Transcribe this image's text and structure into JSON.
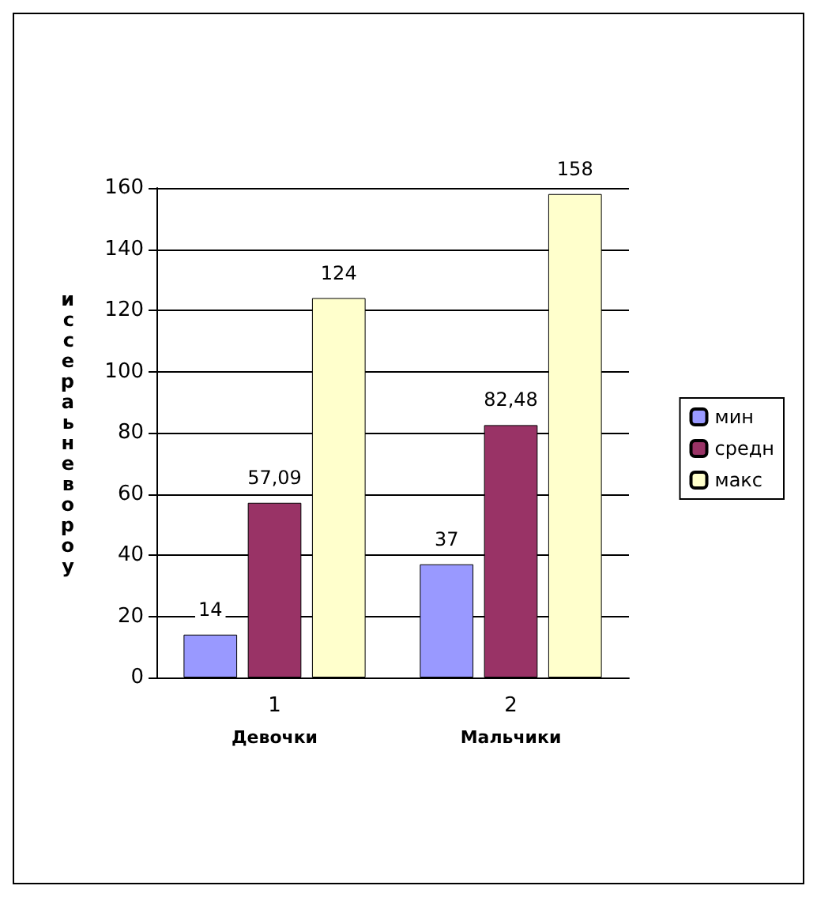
{
  "chart_data": {
    "type": "bar",
    "ylabel": "иссераьневороу",
    "categories": [
      "1",
      "2"
    ],
    "series": [
      {
        "name": "мин",
        "color": "#9999ff",
        "values": [
          14,
          37
        ],
        "value_labels": [
          "14",
          "37"
        ]
      },
      {
        "name": "средн",
        "color": "#993366",
        "values": [
          57.09,
          82.48
        ],
        "value_labels": [
          "57,09",
          "82,48"
        ]
      },
      {
        "name": "макс",
        "color": "#ffffcc",
        "values": [
          124,
          158
        ],
        "value_labels": [
          "124",
          "158"
        ]
      }
    ],
    "ylim": [
      0,
      160
    ],
    "yticks": [
      0,
      20,
      40,
      60,
      80,
      100,
      120,
      140,
      160
    ],
    "grid": "y",
    "legend": "right",
    "annotations": [
      "Девочки",
      "Мальчики"
    ]
  }
}
